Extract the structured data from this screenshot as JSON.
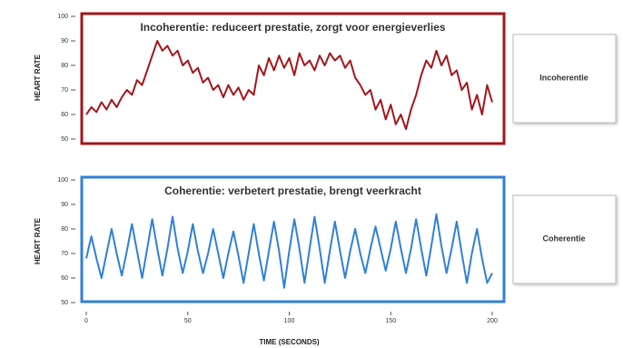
{
  "chart_data": [
    {
      "type": "line",
      "title": "Incoherentie: reduceert prestatie, zorgt voor energieverlies",
      "y_label": "HEART RATE",
      "x": [
        0,
        2.5,
        5,
        7.5,
        10,
        12.5,
        15,
        17.5,
        20,
        22.5,
        25,
        27.5,
        30,
        32.5,
        35,
        37.5,
        40,
        42.5,
        45,
        47.5,
        50,
        52.5,
        55,
        57.5,
        60,
        62.5,
        65,
        67.5,
        70,
        72.5,
        75,
        77.5,
        80,
        82.5,
        85,
        87.5,
        90,
        92.5,
        95,
        97.5,
        100,
        102.5,
        105,
        107.5,
        110,
        112.5,
        115,
        117.5,
        120,
        122.5,
        125,
        127.5,
        130,
        132.5,
        135,
        137.5,
        140,
        142.5,
        145,
        147.5,
        150,
        152.5,
        155,
        157.5,
        160,
        162.5,
        165,
        167.5,
        170,
        172.5,
        175,
        177.5,
        180,
        182.5,
        185,
        187.5,
        190,
        192.5,
        195,
        197.5,
        200
      ],
      "series": [
        {
          "name": "Incoherentie",
          "color": "#a3161c",
          "values": [
            60,
            63,
            61,
            65,
            62,
            66,
            63,
            67,
            70,
            68,
            74,
            72,
            78,
            84,
            90,
            86,
            88,
            84,
            86,
            80,
            82,
            77,
            79,
            73,
            75,
            70,
            72,
            67,
            72,
            68,
            71,
            66,
            70,
            68,
            80,
            76,
            83,
            78,
            84,
            79,
            83,
            76,
            85,
            80,
            82,
            78,
            84,
            80,
            85,
            82,
            84,
            79,
            82,
            75,
            72,
            68,
            70,
            62,
            66,
            58,
            64,
            56,
            60,
            54,
            62,
            68,
            76,
            82,
            79,
            86,
            80,
            84,
            76,
            78,
            70,
            73,
            62,
            68,
            60,
            72,
            65
          ]
        }
      ],
      "xlim": [
        0,
        200
      ],
      "ylim": [
        50,
        100
      ],
      "yticks": [
        50,
        60,
        70,
        80,
        90,
        100
      ]
    },
    {
      "type": "line",
      "title": "Coherentie: verbetert prestatie, brengt veerkracht",
      "y_label": "HEART RATE",
      "x_label": "TIME (SECONDS)",
      "x": [
        0,
        2.5,
        5,
        7.5,
        10,
        12.5,
        15,
        17.5,
        20,
        22.5,
        25,
        27.5,
        30,
        32.5,
        35,
        37.5,
        40,
        42.5,
        45,
        47.5,
        50,
        52.5,
        55,
        57.5,
        60,
        62.5,
        65,
        67.5,
        70,
        72.5,
        75,
        77.5,
        80,
        82.5,
        85,
        87.5,
        90,
        92.5,
        95,
        97.5,
        100,
        102.5,
        105,
        107.5,
        110,
        112.5,
        115,
        117.5,
        120,
        122.5,
        125,
        127.5,
        130,
        132.5,
        135,
        137.5,
        140,
        142.5,
        145,
        147.5,
        150,
        152.5,
        155,
        157.5,
        160,
        162.5,
        165,
        167.5,
        170,
        172.5,
        175,
        177.5,
        180,
        182.5,
        185,
        187.5,
        190,
        192.5,
        195,
        197.5,
        200
      ],
      "series": [
        {
          "name": "Coherentie",
          "color": "#2f80d6",
          "values": [
            68,
            77,
            68,
            60,
            70,
            80,
            70,
            61,
            71,
            82,
            71,
            60,
            72,
            84,
            72,
            61,
            72,
            85,
            72,
            62,
            71,
            82,
            71,
            62,
            70,
            80,
            70,
            60,
            70,
            79,
            69,
            58,
            70,
            82,
            70,
            59,
            71,
            83,
            71,
            56,
            71,
            84,
            72,
            58,
            72,
            85,
            72,
            58,
            71,
            83,
            71,
            60,
            71,
            80,
            70,
            62,
            72,
            81,
            72,
            63,
            72,
            83,
            72,
            62,
            72,
            84,
            72,
            61,
            73,
            86,
            73,
            62,
            72,
            83,
            70,
            58,
            70,
            80,
            68,
            58,
            62
          ]
        }
      ],
      "xlim": [
        0,
        200
      ],
      "ylim": [
        50,
        100
      ],
      "xticks": [
        0,
        50,
        100,
        150,
        200
      ],
      "yticks": [
        50,
        60,
        70,
        80,
        90,
        100
      ]
    }
  ]
}
